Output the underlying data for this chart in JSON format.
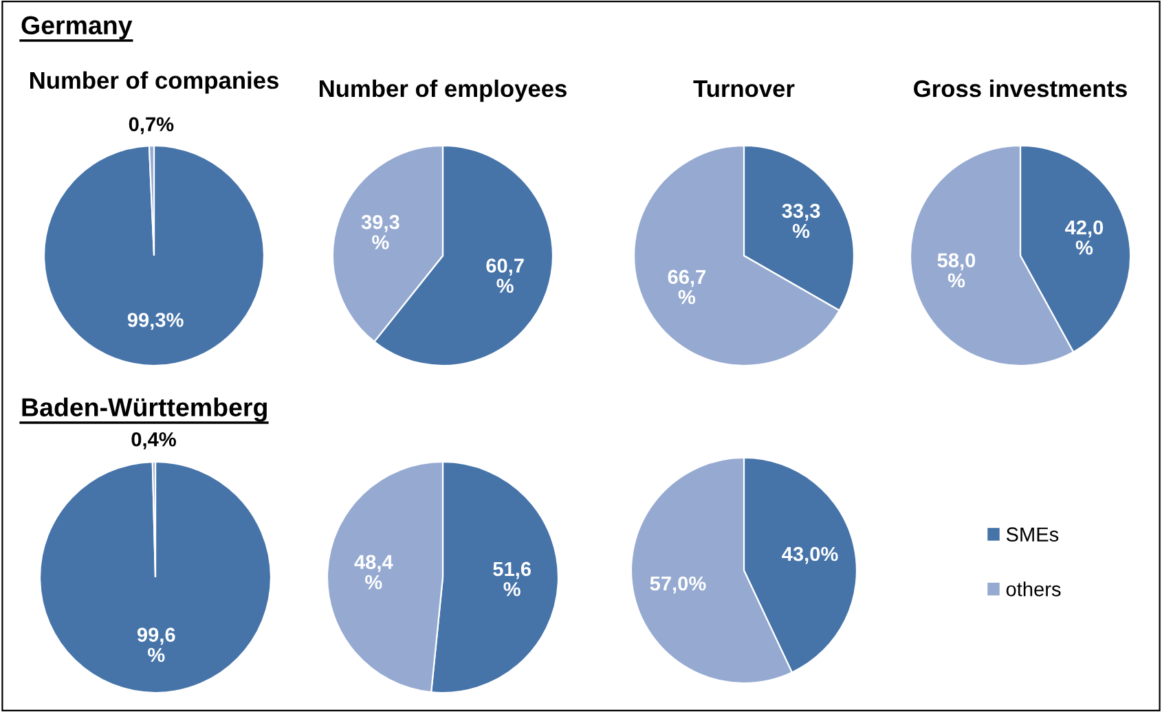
{
  "chart_data": [
    {
      "type": "pie",
      "annotations": [
        "Germany"
      ],
      "title": "Number of companies",
      "categories": [
        null,
        null
      ],
      "values": [
        99.3,
        0.7
      ],
      "colors": [
        "#4674a9",
        "#96aad1"
      ],
      "value_labels": [
        "99,3%",
        "0,7%"
      ]
    },
    {
      "type": "pie",
      "title": "Number of employees",
      "categories": [
        null,
        null
      ],
      "values": [
        60.7,
        39.3
      ],
      "colors": [
        "#4674a9",
        "#96aad1"
      ],
      "value_labels": [
        "60,7\n%",
        "39,3\n%"
      ]
    },
    {
      "type": "pie",
      "title": "Turnover",
      "categories": [
        null,
        null
      ],
      "values": [
        33.3,
        66.7
      ],
      "colors": [
        "#4674a9",
        "#96aad1"
      ],
      "value_labels": [
        "33,3\n%",
        "66,7\n%"
      ]
    },
    {
      "type": "pie",
      "title": "Gross investments",
      "categories": [
        null,
        null
      ],
      "values": [
        42.0,
        58.0
      ],
      "colors": [
        "#4674a9",
        "#96aad1"
      ],
      "value_labels": [
        "42,0\n%",
        "58,0\n%"
      ]
    },
    {
      "type": "pie",
      "annotations": [
        "Baden-Württemberg"
      ],
      "categories": [
        null,
        null
      ],
      "values": [
        99.6,
        0.4
      ],
      "colors": [
        "#4674a9",
        "#96aad1"
      ],
      "value_labels": [
        "99,6\n%",
        "0,4%"
      ]
    },
    {
      "type": "pie",
      "categories": [
        null,
        null
      ],
      "values": [
        51.6,
        48.4
      ],
      "colors": [
        "#4674a9",
        "#96aad1"
      ],
      "value_labels": [
        "51,6\n%",
        "48,4\n%"
      ]
    },
    {
      "type": "pie",
      "categories": [
        "SMEs",
        "others"
      ],
      "values": [
        43.0,
        57.0
      ],
      "colors": [
        "#4674a9",
        "#96aad1"
      ],
      "value_labels": [
        "43,0%",
        "57,0%"
      ],
      "legend": "right"
    }
  ]
}
